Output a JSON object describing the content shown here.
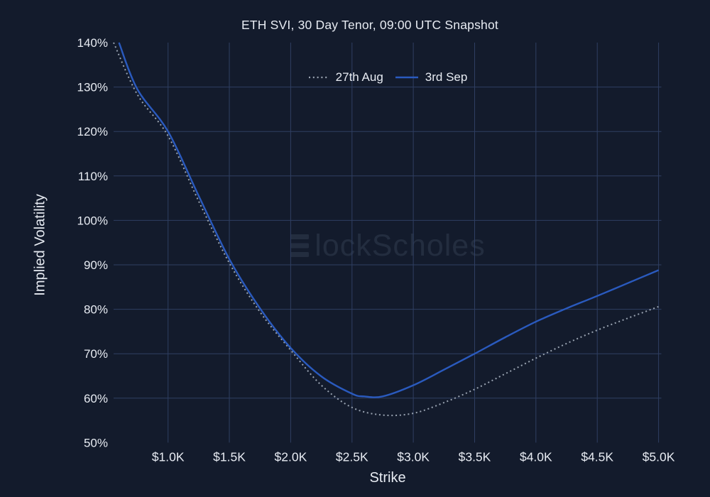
{
  "page": {
    "background_color": "#131b2c",
    "grid_color": "#2f3f62",
    "text_color": "#e7ebf2"
  },
  "header": {
    "title": "ETH SVI, 30 Day Tenor, 09:00 UTC Snapshot"
  },
  "axes": {
    "x_title": "Strike",
    "y_title": "Implied Volatility"
  },
  "watermark": {
    "brand": "BlockScholes",
    "tail": "lockScholes"
  },
  "legend": {
    "items": [
      {
        "label": "27th Aug",
        "line_style": "dotted",
        "color": "#99a3b1"
      },
      {
        "label": "3rd Sep",
        "line_style": "solid",
        "color": "#2a5abe"
      }
    ]
  },
  "chart_data": {
    "type": "line",
    "title": "ETH SVI, 30 Day Tenor, 09:00 UTC Snapshot",
    "xlabel": "Strike",
    "ylabel": "Implied Volatility",
    "y_unit": "percent",
    "x_unit": "USD thousands",
    "xlim": [
      0.556,
      5.017
    ],
    "ylim": [
      50,
      140
    ],
    "grid": true,
    "legend_position": "top-center-inside",
    "x_ticks": [
      {
        "value": 1.0,
        "label": "$1.0K"
      },
      {
        "value": 1.5,
        "label": "$1.5K"
      },
      {
        "value": 2.0,
        "label": "$2.0K"
      },
      {
        "value": 2.5,
        "label": "$2.5K"
      },
      {
        "value": 3.0,
        "label": "$3.0K"
      },
      {
        "value": 3.5,
        "label": "$3.5K"
      },
      {
        "value": 4.0,
        "label": "$4.0K"
      },
      {
        "value": 4.5,
        "label": "$4.5K"
      },
      {
        "value": 5.0,
        "label": "$5.0K"
      }
    ],
    "y_ticks": [
      {
        "value": 140,
        "label": "140%"
      },
      {
        "value": 130,
        "label": "130%"
      },
      {
        "value": 120,
        "label": "120%"
      },
      {
        "value": 110,
        "label": "110%"
      },
      {
        "value": 100,
        "label": "100%"
      },
      {
        "value": 90,
        "label": "90%"
      },
      {
        "value": 80,
        "label": "80%"
      },
      {
        "value": 70,
        "label": "70%"
      },
      {
        "value": 60,
        "label": "60%"
      },
      {
        "value": 50,
        "label": "50%"
      }
    ],
    "series": [
      {
        "name": "27th Aug",
        "style": "dotted",
        "color": "#99a3b1",
        "x": [
          0.556,
          0.75,
          1.0,
          1.25,
          1.5,
          1.75,
          2.0,
          2.25,
          2.5,
          2.75,
          3.0,
          3.25,
          3.5,
          3.75,
          4.0,
          4.25,
          4.5,
          4.75,
          5.0
        ],
        "y": [
          140,
          128.3,
          119.0,
          104.3,
          90.4,
          79.4,
          70.8,
          62.9,
          57.9,
          56.2,
          56.6,
          59.0,
          62.0,
          65.5,
          69.0,
          72.3,
          75.3,
          78.0,
          80.6
        ]
      },
      {
        "name": "3rd Sep",
        "style": "solid",
        "color": "#2a5abe",
        "x": [
          0.6,
          0.75,
          1.0,
          1.25,
          1.5,
          1.75,
          2.0,
          2.25,
          2.5,
          2.6,
          2.75,
          3.0,
          3.25,
          3.5,
          3.75,
          4.0,
          4.25,
          4.5,
          4.75,
          5.0
        ],
        "y": [
          140,
          129.5,
          120.0,
          105.5,
          91.3,
          80.2,
          71.3,
          64.9,
          61.0,
          60.4,
          60.4,
          62.9,
          66.4,
          70.0,
          73.7,
          77.2,
          80.2,
          83.0,
          85.9,
          88.8
        ]
      }
    ]
  }
}
